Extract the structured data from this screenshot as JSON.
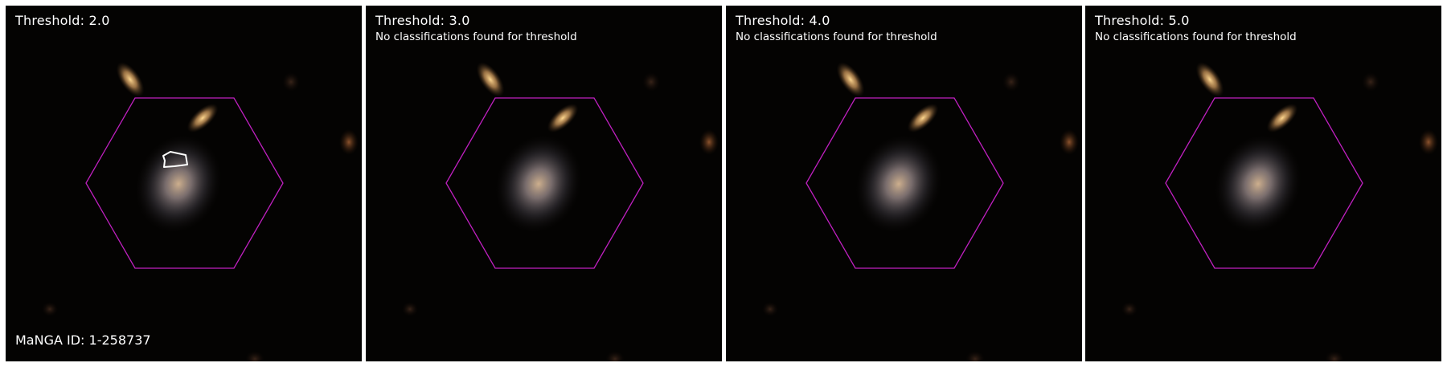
{
  "object_id_label": "MaNGA ID: 1-258737",
  "no_result_message": "No classifications found for threshold",
  "colors": {
    "hexagon": "#c020c0",
    "contour": "#ffffff",
    "background": "#040302"
  },
  "panels": [
    {
      "title": "Threshold: 2.0",
      "has_contour": true,
      "message": ""
    },
    {
      "title": "Threshold: 3.0",
      "has_contour": false,
      "message": "No classifications found for threshold"
    },
    {
      "title": "Threshold: 4.0",
      "has_contour": false,
      "message": "No classifications found for threshold"
    },
    {
      "title": "Threshold: 5.0",
      "has_contour": false,
      "message": "No classifications found for threshold"
    }
  ]
}
